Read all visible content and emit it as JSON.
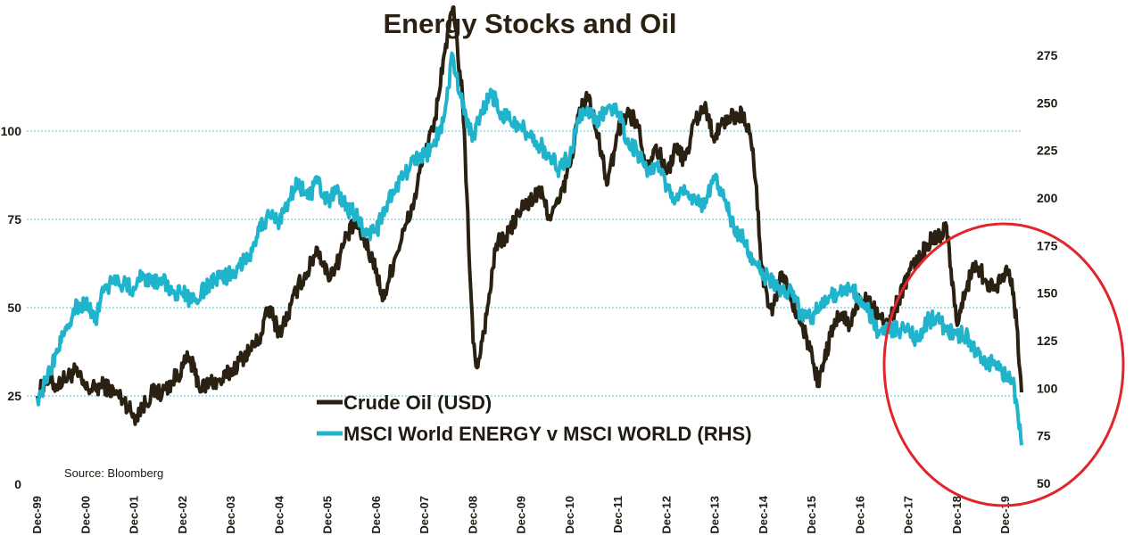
{
  "chart_data": {
    "type": "line",
    "title": "Energy Stocks and Oil",
    "source": "Source: Bloomberg",
    "x_tick_labels": [
      "Dec-99",
      "Dec-00",
      "Dec-01",
      "Dec-02",
      "Dec-03",
      "Dec-04",
      "Dec-05",
      "Dec-06",
      "Dec-07",
      "Dec-08",
      "Dec-09",
      "Dec-10",
      "Dec-11",
      "Dec-12",
      "Dec-13",
      "Dec-14",
      "Dec-15",
      "Dec-16",
      "Dec-17",
      "Dec-18",
      "Dec-19"
    ],
    "x_range": [
      1999.92,
      2020.25
    ],
    "y_left": {
      "ticks": [
        0,
        25,
        50,
        75,
        100
      ],
      "tick_labels": [
        "0",
        "25",
        "50",
        "75",
        "100"
      ],
      "range": [
        0,
        125
      ]
    },
    "y_right": {
      "ticks": [
        50,
        75,
        100,
        125,
        150,
        175,
        200,
        225,
        250,
        275
      ],
      "tick_labels": [
        "50",
        "75",
        "100",
        "125",
        "150",
        "175",
        "200",
        "225",
        "250",
        "275"
      ],
      "range": [
        50,
        280
      ]
    },
    "gridlines": "horizontal dotted at left-axis ticks 25, 50, 75, 100",
    "legend_position": "center-left",
    "series": [
      {
        "name": "Crude Oil (USD)",
        "axis": "left",
        "color": "#2b2112",
        "points": [
          [
            1999.92,
            25
          ],
          [
            2000.1,
            30
          ],
          [
            2000.3,
            28
          ],
          [
            2000.5,
            30
          ],
          [
            2000.7,
            32
          ],
          [
            2000.92,
            27
          ],
          [
            2001.1,
            27
          ],
          [
            2001.3,
            28
          ],
          [
            2001.5,
            26
          ],
          [
            2001.7,
            24
          ],
          [
            2001.92,
            19
          ],
          [
            2002.1,
            22
          ],
          [
            2002.3,
            26
          ],
          [
            2002.5,
            26
          ],
          [
            2002.7,
            29
          ],
          [
            2002.92,
            33
          ],
          [
            2003.05,
            36
          ],
          [
            2003.3,
            27
          ],
          [
            2003.5,
            29
          ],
          [
            2003.7,
            29
          ],
          [
            2003.92,
            32
          ],
          [
            2004.1,
            35
          ],
          [
            2004.3,
            38
          ],
          [
            2004.5,
            41
          ],
          [
            2004.7,
            50
          ],
          [
            2004.92,
            43
          ],
          [
            2005.1,
            48
          ],
          [
            2005.3,
            56
          ],
          [
            2005.5,
            60
          ],
          [
            2005.7,
            67
          ],
          [
            2005.92,
            59
          ],
          [
            2006.1,
            62
          ],
          [
            2006.3,
            70
          ],
          [
            2006.5,
            74
          ],
          [
            2006.7,
            68
          ],
          [
            2006.92,
            61
          ],
          [
            2007.05,
            52
          ],
          [
            2007.3,
            64
          ],
          [
            2007.5,
            72
          ],
          [
            2007.7,
            80
          ],
          [
            2007.92,
            95
          ],
          [
            2008.1,
            100
          ],
          [
            2008.3,
            120
          ],
          [
            2008.5,
            135
          ],
          [
            2008.7,
            110
          ],
          [
            2008.92,
            40
          ],
          [
            2009.0,
            33
          ],
          [
            2009.2,
            48
          ],
          [
            2009.4,
            68
          ],
          [
            2009.6,
            70
          ],
          [
            2009.92,
            78
          ],
          [
            2010.1,
            80
          ],
          [
            2010.3,
            83
          ],
          [
            2010.5,
            76
          ],
          [
            2010.7,
            80
          ],
          [
            2010.92,
            90
          ],
          [
            2011.1,
            105
          ],
          [
            2011.3,
            110
          ],
          [
            2011.5,
            98
          ],
          [
            2011.7,
            85
          ],
          [
            2011.92,
            100
          ],
          [
            2012.1,
            105
          ],
          [
            2012.3,
            103
          ],
          [
            2012.5,
            90
          ],
          [
            2012.7,
            96
          ],
          [
            2012.92,
            88
          ],
          [
            2013.1,
            95
          ],
          [
            2013.3,
            92
          ],
          [
            2013.5,
            103
          ],
          [
            2013.7,
            107
          ],
          [
            2013.92,
            98
          ],
          [
            2014.1,
            103
          ],
          [
            2014.3,
            104
          ],
          [
            2014.5,
            105
          ],
          [
            2014.7,
            95
          ],
          [
            2014.92,
            56
          ],
          [
            2015.1,
            48
          ],
          [
            2015.3,
            60
          ],
          [
            2015.5,
            52
          ],
          [
            2015.7,
            45
          ],
          [
            2015.92,
            37
          ],
          [
            2016.05,
            28
          ],
          [
            2016.3,
            42
          ],
          [
            2016.5,
            48
          ],
          [
            2016.7,
            45
          ],
          [
            2016.92,
            53
          ],
          [
            2017.1,
            53
          ],
          [
            2017.3,
            48
          ],
          [
            2017.5,
            45
          ],
          [
            2017.7,
            52
          ],
          [
            2017.92,
            60
          ],
          [
            2018.1,
            63
          ],
          [
            2018.3,
            68
          ],
          [
            2018.5,
            70
          ],
          [
            2018.7,
            73
          ],
          [
            2018.92,
            45
          ],
          [
            2019.1,
            55
          ],
          [
            2019.3,
            63
          ],
          [
            2019.5,
            58
          ],
          [
            2019.7,
            55
          ],
          [
            2019.92,
            61
          ],
          [
            2020.05,
            58
          ],
          [
            2020.15,
            45
          ],
          [
            2020.25,
            26
          ]
        ]
      },
      {
        "name": "MSCI World ENERGY v MSCI WORLD (RHS)",
        "axis": "right",
        "color": "#1fb4cc",
        "points": [
          [
            1999.92,
            95
          ],
          [
            2000.1,
            103
          ],
          [
            2000.3,
            118
          ],
          [
            2000.5,
            132
          ],
          [
            2000.7,
            142
          ],
          [
            2000.92,
            145
          ],
          [
            2001.1,
            135
          ],
          [
            2001.3,
            152
          ],
          [
            2001.5,
            157
          ],
          [
            2001.7,
            155
          ],
          [
            2001.92,
            152
          ],
          [
            2002.1,
            160
          ],
          [
            2002.3,
            154
          ],
          [
            2002.5,
            158
          ],
          [
            2002.7,
            150
          ],
          [
            2002.92,
            150
          ],
          [
            2003.1,
            145
          ],
          [
            2003.3,
            150
          ],
          [
            2003.5,
            155
          ],
          [
            2003.7,
            158
          ],
          [
            2003.92,
            160
          ],
          [
            2004.1,
            165
          ],
          [
            2004.3,
            170
          ],
          [
            2004.5,
            185
          ],
          [
            2004.7,
            190
          ],
          [
            2004.92,
            188
          ],
          [
            2005.1,
            198
          ],
          [
            2005.3,
            208
          ],
          [
            2005.5,
            200
          ],
          [
            2005.7,
            208
          ],
          [
            2005.92,
            198
          ],
          [
            2006.1,
            203
          ],
          [
            2006.3,
            195
          ],
          [
            2006.5,
            192
          ],
          [
            2006.7,
            180
          ],
          [
            2006.92,
            182
          ],
          [
            2007.1,
            195
          ],
          [
            2007.3,
            203
          ],
          [
            2007.5,
            212
          ],
          [
            2007.7,
            220
          ],
          [
            2007.92,
            222
          ],
          [
            2008.1,
            228
          ],
          [
            2008.3,
            240
          ],
          [
            2008.5,
            275
          ],
          [
            2008.7,
            248
          ],
          [
            2008.92,
            232
          ],
          [
            2009.1,
            245
          ],
          [
            2009.3,
            255
          ],
          [
            2009.5,
            245
          ],
          [
            2009.7,
            240
          ],
          [
            2009.92,
            237
          ],
          [
            2010.1,
            232
          ],
          [
            2010.3,
            228
          ],
          [
            2010.5,
            222
          ],
          [
            2010.7,
            215
          ],
          [
            2010.92,
            222
          ],
          [
            2011.1,
            242
          ],
          [
            2011.3,
            245
          ],
          [
            2011.5,
            240
          ],
          [
            2011.7,
            248
          ],
          [
            2011.92,
            245
          ],
          [
            2012.1,
            230
          ],
          [
            2012.3,
            225
          ],
          [
            2012.5,
            215
          ],
          [
            2012.7,
            218
          ],
          [
            2012.92,
            205
          ],
          [
            2013.1,
            200
          ],
          [
            2013.3,
            203
          ],
          [
            2013.5,
            200
          ],
          [
            2013.7,
            195
          ],
          [
            2013.92,
            212
          ],
          [
            2014.1,
            200
          ],
          [
            2014.3,
            185
          ],
          [
            2014.5,
            178
          ],
          [
            2014.7,
            168
          ],
          [
            2014.92,
            160
          ],
          [
            2015.1,
            155
          ],
          [
            2015.3,
            150
          ],
          [
            2015.5,
            152
          ],
          [
            2015.7,
            138
          ],
          [
            2015.92,
            137
          ],
          [
            2016.1,
            145
          ],
          [
            2016.3,
            148
          ],
          [
            2016.5,
            150
          ],
          [
            2016.7,
            152
          ],
          [
            2016.92,
            148
          ],
          [
            2017.1,
            140
          ],
          [
            2017.3,
            128
          ],
          [
            2017.5,
            132
          ],
          [
            2017.7,
            130
          ],
          [
            2017.92,
            130
          ],
          [
            2018.1,
            125
          ],
          [
            2018.3,
            135
          ],
          [
            2018.5,
            138
          ],
          [
            2018.7,
            130
          ],
          [
            2018.92,
            128
          ],
          [
            2019.1,
            128
          ],
          [
            2019.3,
            120
          ],
          [
            2019.5,
            115
          ],
          [
            2019.7,
            112
          ],
          [
            2019.92,
            107
          ],
          [
            2020.05,
            105
          ],
          [
            2020.15,
            92
          ],
          [
            2020.25,
            70
          ]
        ]
      }
    ],
    "annotations": [
      "red ellipse highlighting Dec-17 to Dec-19 divergence"
    ]
  },
  "colors": {
    "oil": "#2b2112",
    "energy_ratio": "#1fb4cc",
    "grid": "#4cc3d9",
    "highlight_circle": "#e0262b",
    "text": "#1f1a12"
  }
}
